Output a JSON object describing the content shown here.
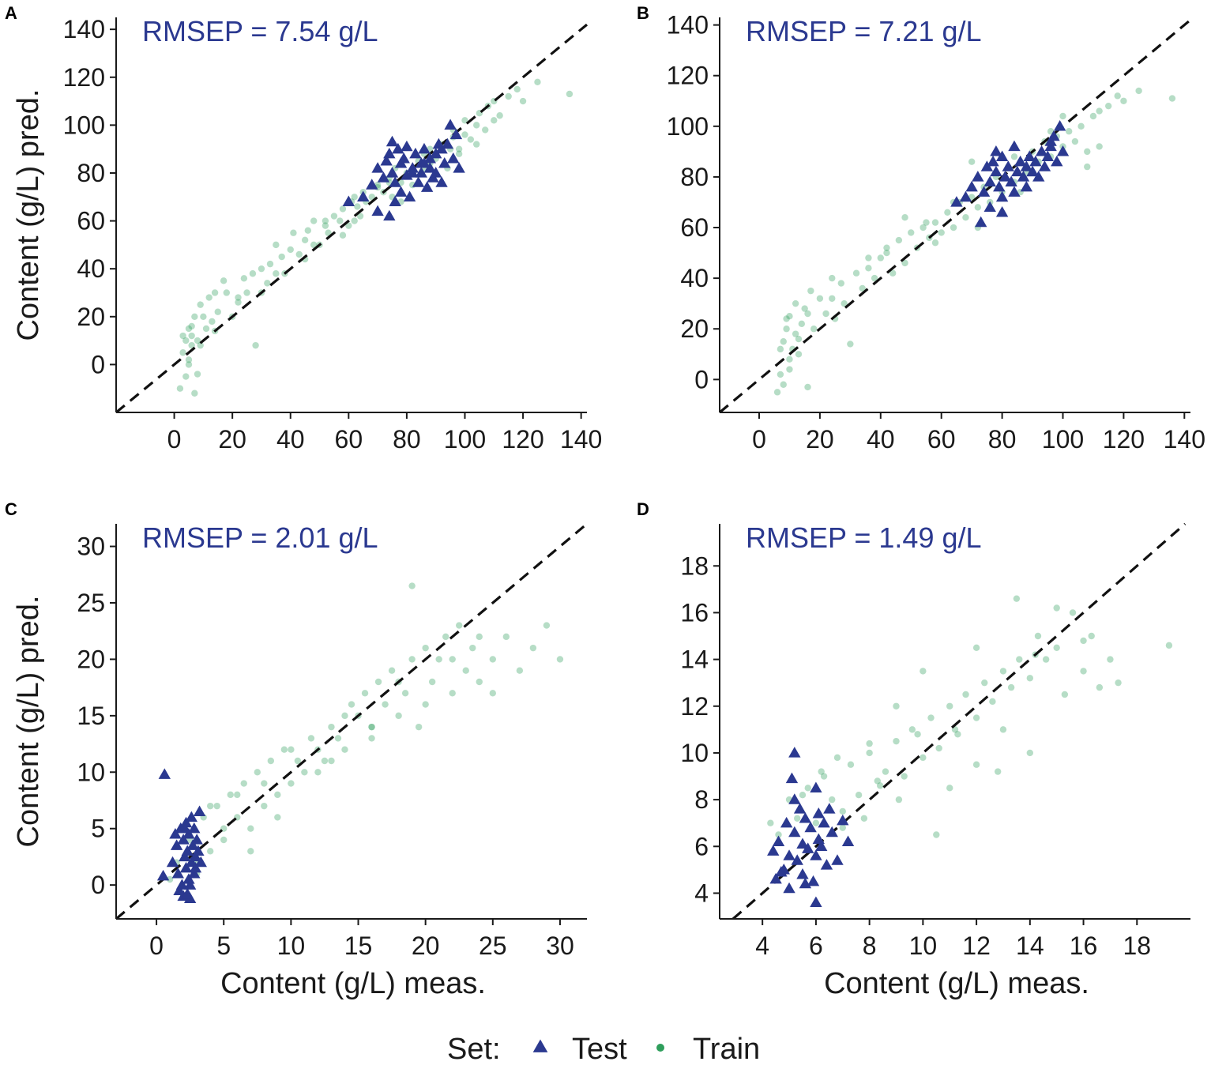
{
  "colors": {
    "test": "#2B3990",
    "train": "#2E9E5B",
    "rmsep": "#2B3990",
    "axis": "#1a1a1a",
    "diagonal": "#111111"
  },
  "legend": {
    "title": "Set:",
    "items": [
      {
        "label": "Test",
        "shape": "triangle"
      },
      {
        "label": "Train",
        "shape": "circle"
      }
    ]
  },
  "chart_data": [
    {
      "id": "A",
      "panel_label": "A",
      "type": "scatter",
      "annotation": "RMSEP  = 7.54 g/L",
      "xlabel": "",
      "ylabel": "Content (g/L) pred.",
      "xlim": [
        -20,
        142
      ],
      "ylim": [
        -20,
        145
      ],
      "xticks": [
        0,
        20,
        40,
        60,
        80,
        100,
        120,
        140
      ],
      "yticks": [
        0,
        20,
        40,
        60,
        80,
        100,
        120,
        140
      ],
      "diagonal": true,
      "series": [
        {
          "name": "Train",
          "marker": "circle",
          "x": [
            2,
            3,
            4,
            4,
            5,
            5,
            6,
            6,
            7,
            7,
            8,
            9,
            10,
            11,
            12,
            13,
            14,
            15,
            17,
            18,
            20,
            22,
            24,
            25,
            27,
            28,
            30,
            32,
            33,
            35,
            37,
            38,
            40,
            41,
            43,
            45,
            46,
            48,
            50,
            52,
            53,
            55,
            57,
            58,
            60,
            61,
            62,
            64,
            65,
            66,
            68,
            70,
            72,
            74,
            75,
            76,
            78,
            80,
            82,
            84,
            85,
            86,
            88,
            90,
            92,
            94,
            95,
            96,
            98,
            100,
            100,
            102,
            104,
            105,
            107,
            108,
            110,
            112,
            115,
            118,
            120,
            125,
            136,
            30,
            45,
            52,
            58,
            63,
            70,
            78,
            88,
            96,
            104,
            8,
            14,
            22,
            35,
            48,
            62,
            74,
            86,
            98,
            110,
            5,
            3,
            6,
            9
          ],
          "y": [
            -10,
            5,
            10,
            -5,
            15,
            0,
            8,
            12,
            20,
            -12,
            10,
            25,
            20,
            15,
            28,
            18,
            30,
            22,
            35,
            30,
            20,
            28,
            36,
            30,
            38,
            8,
            40,
            34,
            42,
            50,
            45,
            38,
            48,
            55,
            46,
            52,
            56,
            60,
            50,
            58,
            55,
            62,
            60,
            65,
            58,
            68,
            70,
            62,
            72,
            68,
            70,
            75,
            72,
            78,
            70,
            82,
            76,
            80,
            75,
            85,
            80,
            88,
            84,
            86,
            92,
            82,
            90,
            95,
            88,
            96,
            102,
            94,
            100,
            105,
            98,
            108,
            110,
            104,
            112,
            115,
            110,
            118,
            113,
            30,
            44,
            60,
            54,
            66,
            74,
            68,
            90,
            98,
            92,
            -4,
            14,
            26,
            38,
            50,
            60,
            76,
            82,
            90,
            102,
            2,
            12,
            16,
            8
          ]
        },
        {
          "name": "Test",
          "marker": "triangle",
          "x": [
            60,
            65,
            68,
            70,
            72,
            73,
            74,
            75,
            75,
            76,
            77,
            78,
            78,
            79,
            80,
            80,
            81,
            82,
            83,
            84,
            85,
            85,
            86,
            87,
            88,
            88,
            89,
            90,
            90,
            91,
            92,
            93,
            94,
            95,
            96,
            97,
            98,
            70,
            74,
            82,
            86,
            92,
            76
          ],
          "y": [
            68,
            70,
            75,
            82,
            78,
            85,
            88,
            80,
            93,
            76,
            90,
            72,
            84,
            86,
            79,
            91,
            70,
            82,
            88,
            76,
            84,
            80,
            90,
            74,
            82,
            86,
            78,
            88,
            80,
            92,
            76,
            84,
            92,
            100,
            86,
            96,
            82,
            64,
            62,
            80,
            84,
            90,
            68
          ]
        }
      ]
    },
    {
      "id": "B",
      "panel_label": "B",
      "type": "scatter",
      "annotation": "RMSEP  = 7.21 g/L",
      "xlabel": "",
      "ylabel": "",
      "xlim": [
        -13,
        142
      ],
      "ylim": [
        -13,
        143
      ],
      "xticks": [
        0,
        20,
        40,
        60,
        80,
        100,
        120,
        140
      ],
      "yticks": [
        0,
        20,
        40,
        60,
        80,
        100,
        120,
        140
      ],
      "diagonal": true,
      "series": [
        {
          "name": "Train",
          "marker": "circle",
          "x": [
            6,
            7,
            8,
            8,
            9,
            10,
            10,
            11,
            12,
            12,
            13,
            14,
            15,
            16,
            17,
            18,
            20,
            22,
            24,
            25,
            27,
            30,
            32,
            34,
            36,
            38,
            40,
            42,
            44,
            46,
            48,
            50,
            52,
            54,
            56,
            58,
            60,
            62,
            64,
            66,
            68,
            70,
            72,
            74,
            76,
            78,
            80,
            82,
            84,
            86,
            88,
            90,
            92,
            94,
            96,
            98,
            100,
            102,
            104,
            106,
            108,
            110,
            112,
            115,
            118,
            120,
            125,
            136,
            28,
            42,
            55,
            64,
            72,
            84,
            96,
            108,
            10,
            16,
            24,
            36,
            48,
            58,
            70,
            86,
            100,
            112,
            7,
            9,
            13
          ],
          "y": [
            -5,
            2,
            15,
            -2,
            20,
            8,
            25,
            12,
            18,
            30,
            10,
            22,
            28,
            -3,
            35,
            20,
            32,
            26,
            40,
            24,
            38,
            14,
            42,
            36,
            44,
            40,
            48,
            50,
            42,
            55,
            46,
            58,
            52,
            60,
            56,
            62,
            58,
            66,
            60,
            70,
            64,
            72,
            68,
            76,
            70,
            80,
            74,
            84,
            78,
            86,
            82,
            90,
            86,
            94,
            88,
            96,
            92,
            98,
            94,
            100,
            90,
            104,
            106,
            108,
            112,
            110,
            114,
            111,
            30,
            52,
            62,
            70,
            60,
            88,
            98,
            84,
            4,
            26,
            32,
            48,
            64,
            54,
            86,
            74,
            104,
            92,
            12,
            24,
            16
          ]
        },
        {
          "name": "Test",
          "marker": "triangle",
          "x": [
            65,
            68,
            70,
            72,
            74,
            75,
            76,
            77,
            78,
            78,
            79,
            80,
            80,
            81,
            82,
            83,
            84,
            85,
            86,
            87,
            88,
            88,
            89,
            90,
            91,
            92,
            93,
            94,
            95,
            96,
            97,
            98,
            99,
            100,
            76,
            80,
            84,
            90,
            96,
            73
          ],
          "y": [
            70,
            72,
            76,
            80,
            74,
            84,
            78,
            86,
            82,
            90,
            76,
            88,
            72,
            80,
            84,
            78,
            92,
            82,
            86,
            80,
            84,
            76,
            88,
            82,
            86,
            80,
            90,
            84,
            88,
            92,
            96,
            86,
            100,
            90,
            68,
            66,
            74,
            82,
            94,
            62
          ]
        }
      ]
    },
    {
      "id": "C",
      "panel_label": "C",
      "type": "scatter",
      "annotation": "RMSEP  = 2.01 g/L",
      "xlabel": "Content (g/L) meas.",
      "ylabel": "Content (g/L) pred.",
      "xlim": [
        -3,
        32
      ],
      "ylim": [
        -3,
        32
      ],
      "xticks": [
        0,
        5,
        10,
        15,
        20,
        25,
        30
      ],
      "yticks": [
        0,
        5,
        10,
        15,
        20,
        25,
        30
      ],
      "diagonal": true,
      "series": [
        {
          "name": "Train",
          "marker": "circle",
          "x": [
            1,
            1.5,
            2,
            2.5,
            3,
            3.5,
            4,
            4.5,
            5,
            5.5,
            6,
            6.5,
            7,
            7.5,
            8,
            8.5,
            9,
            9.5,
            10,
            10.5,
            11,
            11.5,
            12,
            12.5,
            13,
            13.5,
            14,
            14.5,
            15,
            15.5,
            16,
            16.5,
            17,
            17.5,
            18,
            18.5,
            19,
            19.5,
            20,
            20.5,
            21,
            21.5,
            22,
            22.5,
            23,
            23.5,
            24,
            25,
            26,
            27,
            28,
            29,
            30,
            2,
            3,
            4,
            5,
            6,
            7,
            8,
            9,
            10,
            12,
            14,
            16,
            18,
            20,
            22,
            24,
            19,
            25,
            16,
            13
          ],
          "y": [
            0.5,
            2,
            -1,
            4,
            1,
            6,
            3,
            7,
            5,
            8,
            6,
            9,
            5,
            10,
            7,
            11,
            8,
            12,
            9,
            11,
            10,
            13,
            12,
            11,
            14,
            13,
            12,
            16,
            15,
            17,
            14,
            18,
            16,
            19,
            15,
            17,
            20,
            14,
            21,
            18,
            20,
            22,
            17,
            23,
            19,
            21,
            18,
            20,
            22,
            19,
            21,
            23,
            20,
            -1,
            2,
            7,
            4,
            8,
            3,
            9,
            6,
            12,
            10,
            15,
            14,
            18,
            16,
            20,
            22,
            26.5,
            17,
            13,
            11
          ]
        },
        {
          "name": "Test",
          "marker": "triangle",
          "x": [
            0.5,
            0.6,
            1.2,
            1.5,
            1.6,
            1.8,
            1.9,
            2,
            2,
            2.1,
            2.2,
            2.2,
            2.3,
            2.4,
            2.4,
            2.5,
            2.6,
            2.6,
            2.7,
            2.8,
            2.8,
            2.9,
            3,
            3.1,
            3.2,
            1.7,
            2.3,
            2.9,
            1.4,
            2.5,
            2.1,
            3.3
          ],
          "y": [
            0.8,
            9.8,
            2,
            3.5,
            1,
            5,
            0,
            4,
            -1,
            2.5,
            5.5,
            1.5,
            3,
            0.5,
            4.5,
            -1.2,
            2,
            6,
            3.5,
            1,
            5,
            2.5,
            4,
            3,
            6.5,
            -0.5,
            -0.8,
            1.5,
            4.5,
            0,
            5,
            2
          ]
        }
      ]
    },
    {
      "id": "D",
      "panel_label": "D",
      "type": "scatter",
      "annotation": "RMSEP  = 1.49 g/L",
      "xlabel": "Content (g/L) meas.",
      "ylabel": "",
      "xlim": [
        2.4,
        20
      ],
      "ylim": [
        2.9,
        19.8
      ],
      "xticks": [
        4,
        6,
        8,
        10,
        12,
        14,
        16,
        18
      ],
      "yticks": [
        4,
        6,
        8,
        10,
        12,
        14,
        16,
        18
      ],
      "diagonal": true,
      "series": [
        {
          "name": "Train",
          "marker": "circle",
          "x": [
            4.3,
            4.6,
            5,
            5.3,
            5.7,
            6,
            6.3,
            6.6,
            7,
            7.3,
            7.6,
            8,
            8.3,
            8.6,
            9,
            9.3,
            9.6,
            10,
            10.3,
            10.6,
            11,
            11.3,
            11.6,
            12,
            12.3,
            12.6,
            13,
            13.3,
            13.6,
            14,
            14.3,
            14.6,
            15,
            15.3,
            15.6,
            16,
            16.3,
            16.6,
            17,
            17.3,
            19.2,
            6.2,
            7,
            7.8,
            8.4,
            9.1,
            9.8,
            10.5,
            11.2,
            12,
            12.8,
            13.5,
            14.2,
            8,
            9,
            10,
            11,
            12,
            13,
            14,
            15,
            16,
            5.5,
            6.8
          ],
          "y": [
            7,
            6.5,
            8,
            7.2,
            8.5,
            7,
            9,
            8,
            7.5,
            9.5,
            8.2,
            10,
            8.8,
            9.2,
            10.5,
            9,
            11,
            9.8,
            11.5,
            10.2,
            12,
            10.8,
            12.5,
            11.5,
            13,
            12.2,
            13.5,
            12.8,
            14,
            13.2,
            15,
            14,
            14.5,
            12.5,
            16,
            13.5,
            15,
            12.8,
            14,
            13,
            14.6,
            9.2,
            6.8,
            7.2,
            8.6,
            8,
            10.8,
            6.5,
            11,
            14.5,
            9.2,
            16.6,
            14.2,
            10.4,
            12,
            13.5,
            8.5,
            9.5,
            11,
            10,
            16.2,
            14.8,
            8.2,
            9.8
          ]
        },
        {
          "name": "Test",
          "marker": "triangle",
          "x": [
            4.4,
            4.5,
            4.6,
            4.8,
            4.9,
            5,
            5,
            5.1,
            5.2,
            5.2,
            5.3,
            5.4,
            5.5,
            5.5,
            5.6,
            5.7,
            5.8,
            5.9,
            6,
            6,
            6.1,
            6.2,
            6.3,
            6.4,
            6.5,
            6.6,
            6.8,
            7,
            7.2,
            5.2,
            6.1,
            4.7,
            5.6,
            6
          ],
          "y": [
            5.8,
            4.6,
            6.2,
            5,
            7,
            5.6,
            4.2,
            8.9,
            6.6,
            10,
            5.4,
            7.6,
            6.1,
            4.8,
            7.2,
            5.9,
            6.8,
            4.5,
            8.5,
            3.6,
            7.4,
            6,
            7,
            5.2,
            7.6,
            6.6,
            5.4,
            7.1,
            6.2,
            8,
            6.3,
            4.9,
            4.4,
            5.6
          ]
        }
      ]
    }
  ]
}
